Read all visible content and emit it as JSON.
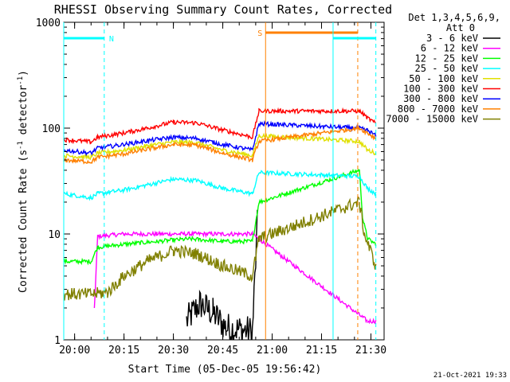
{
  "chart_data": {
    "type": "line",
    "title": "RHESSI Observing Summary Count Rates, Corrected",
    "xlabel": "Start Time (05-Dec-05 19:56:42)",
    "ylabel": "Corrected Count Rate (s⁻¹ detector⁻¹)",
    "ylabel_parts": {
      "main": "Corrected Count Rate (s",
      "sup1": "-1",
      "mid": " detector",
      "sup2": "-1",
      "end": ")"
    },
    "y_scale": "log",
    "ylim": [
      1,
      1000
    ],
    "xlim": [
      "19:56:42",
      "21:34:00"
    ],
    "x_ticks": [
      "20:00",
      "20:15",
      "20:30",
      "20:45",
      "21:00",
      "21:15",
      "21:30"
    ],
    "y_ticks": [
      "1",
      "10",
      "100",
      "1000"
    ],
    "legend_title": [
      "Det 1,3,4,5,6,9,",
      "Att 0"
    ],
    "legend_placement": "right",
    "footer_date": "21-Oct-2021 19:33",
    "markers": [
      {
        "label": "N",
        "color": "#00ffff",
        "start": "19:56:42",
        "end": "20:09:00",
        "style": "night"
      },
      {
        "label": "S",
        "color": "#ff8000",
        "start": "20:58:00",
        "end": "21:26:00",
        "style": "saa"
      },
      {
        "label": "",
        "color": "#00ffff",
        "start": "21:18:30",
        "end": "21:31:30",
        "style": "night"
      }
    ],
    "series": [
      {
        "name": "3 - 6 keV",
        "color": "#000000",
        "points": [
          [
            "20:34:00",
            1.5
          ],
          [
            "20:38:00",
            2.2
          ],
          [
            "20:42:00",
            1.8
          ],
          [
            "20:46:00",
            1.3
          ],
          [
            "20:54:00",
            1.2
          ],
          [
            "20:55:30",
            12
          ]
        ]
      },
      {
        "name": "6 - 12 keV",
        "color": "#ff00ff",
        "points": [
          [
            "20:06:00",
            2
          ],
          [
            "20:07:00",
            9.5
          ],
          [
            "20:15:00",
            10
          ],
          [
            "20:25:00",
            10
          ],
          [
            "20:35:00",
            10
          ],
          [
            "20:45:00",
            10
          ],
          [
            "20:54:00",
            10
          ],
          [
            "21:29:00",
            1.5
          ],
          [
            "21:31:30",
            1.5
          ]
        ]
      },
      {
        "name": "12 - 25 keV",
        "color": "#00ff00",
        "points": [
          [
            "19:56:42",
            5.5
          ],
          [
            "20:05:00",
            5.5
          ],
          [
            "20:07:00",
            7.5
          ],
          [
            "20:15:00",
            8
          ],
          [
            "20:25:00",
            8.5
          ],
          [
            "20:35:00",
            9
          ],
          [
            "20:45:00",
            8.5
          ],
          [
            "20:54:00",
            8.5
          ],
          [
            "20:56:00",
            20
          ],
          [
            "21:26:30",
            40
          ],
          [
            "21:27:30",
            14
          ],
          [
            "21:29:00",
            9
          ],
          [
            "21:31:30",
            8
          ]
        ]
      },
      {
        "name": "25 - 50 keV",
        "color": "#00ffff",
        "points": [
          [
            "19:56:42",
            24
          ],
          [
            "20:05:00",
            22
          ],
          [
            "20:07:00",
            24
          ],
          [
            "20:15:00",
            26
          ],
          [
            "20:22:00",
            29
          ],
          [
            "20:30:00",
            33
          ],
          [
            "20:37:00",
            32
          ],
          [
            "20:45:00",
            27
          ],
          [
            "20:54:00",
            24
          ],
          [
            "20:56:00",
            38
          ],
          [
            "21:26:30",
            35
          ],
          [
            "21:29:00",
            27
          ],
          [
            "21:31:30",
            24
          ]
        ]
      },
      {
        "name": "50 - 100 keV",
        "color": "#e0e000",
        "points": [
          [
            "19:56:42",
            55
          ],
          [
            "20:05:00",
            53
          ],
          [
            "20:07:00",
            58
          ],
          [
            "20:15:00",
            62
          ],
          [
            "20:22:00",
            68
          ],
          [
            "20:30:00",
            74
          ],
          [
            "20:37:00",
            73
          ],
          [
            "20:45:00",
            62
          ],
          [
            "20:54:00",
            55
          ],
          [
            "20:56:00",
            85
          ],
          [
            "21:26:30",
            75
          ],
          [
            "21:29:00",
            62
          ],
          [
            "21:31:30",
            58
          ]
        ]
      },
      {
        "name": "100 - 300 keV",
        "color": "#ff0000",
        "points": [
          [
            "19:56:42",
            78
          ],
          [
            "20:05:00",
            74
          ],
          [
            "20:07:00",
            82
          ],
          [
            "20:15:00",
            90
          ],
          [
            "20:22:00",
            100
          ],
          [
            "20:30:00",
            114
          ],
          [
            "20:37:00",
            112
          ],
          [
            "20:45:00",
            96
          ],
          [
            "20:54:00",
            82
          ],
          [
            "20:56:00",
            145
          ],
          [
            "21:26:30",
            145
          ],
          [
            "21:29:00",
            125
          ],
          [
            "21:31:30",
            110
          ]
        ]
      },
      {
        "name": "300 - 800 keV",
        "color": "#0000ff",
        "points": [
          [
            "19:56:42",
            62
          ],
          [
            "20:05:00",
            58
          ],
          [
            "20:07:00",
            65
          ],
          [
            "20:15:00",
            70
          ],
          [
            "20:22:00",
            76
          ],
          [
            "20:30:00",
            82
          ],
          [
            "20:37:00",
            80
          ],
          [
            "20:45:00",
            70
          ],
          [
            "20:54:00",
            62
          ],
          [
            "20:56:00",
            110
          ],
          [
            "21:26:30",
            100
          ],
          [
            "21:29:00",
            95
          ],
          [
            "21:31:30",
            85
          ]
        ]
      },
      {
        "name": "800 - 7000 keV",
        "color": "#ff8000",
        "points": [
          [
            "19:56:42",
            50
          ],
          [
            "20:05:00",
            48
          ],
          [
            "20:07:00",
            53
          ],
          [
            "20:15:00",
            57
          ],
          [
            "20:22:00",
            63
          ],
          [
            "20:30:00",
            70
          ],
          [
            "20:37:00",
            69
          ],
          [
            "20:45:00",
            58
          ],
          [
            "20:54:00",
            50
          ],
          [
            "20:56:00",
            75
          ],
          [
            "21:26:30",
            100
          ],
          [
            "21:29:00",
            90
          ],
          [
            "21:31:30",
            80
          ]
        ]
      },
      {
        "name": "7000 - 15000 keV",
        "color": "#808000",
        "points": [
          [
            "19:56:42",
            2.7
          ],
          [
            "20:05:00",
            2.7
          ],
          [
            "20:10:00",
            2.8
          ],
          [
            "20:15:00",
            4
          ],
          [
            "20:22:00",
            5.5
          ],
          [
            "20:30:00",
            7
          ],
          [
            "20:37:00",
            6.5
          ],
          [
            "20:45:00",
            5
          ],
          [
            "20:54:00",
            4
          ],
          [
            "20:56:00",
            9
          ],
          [
            "21:26:30",
            20
          ],
          [
            "21:28:00",
            10
          ],
          [
            "21:31:30",
            5
          ]
        ]
      }
    ]
  }
}
